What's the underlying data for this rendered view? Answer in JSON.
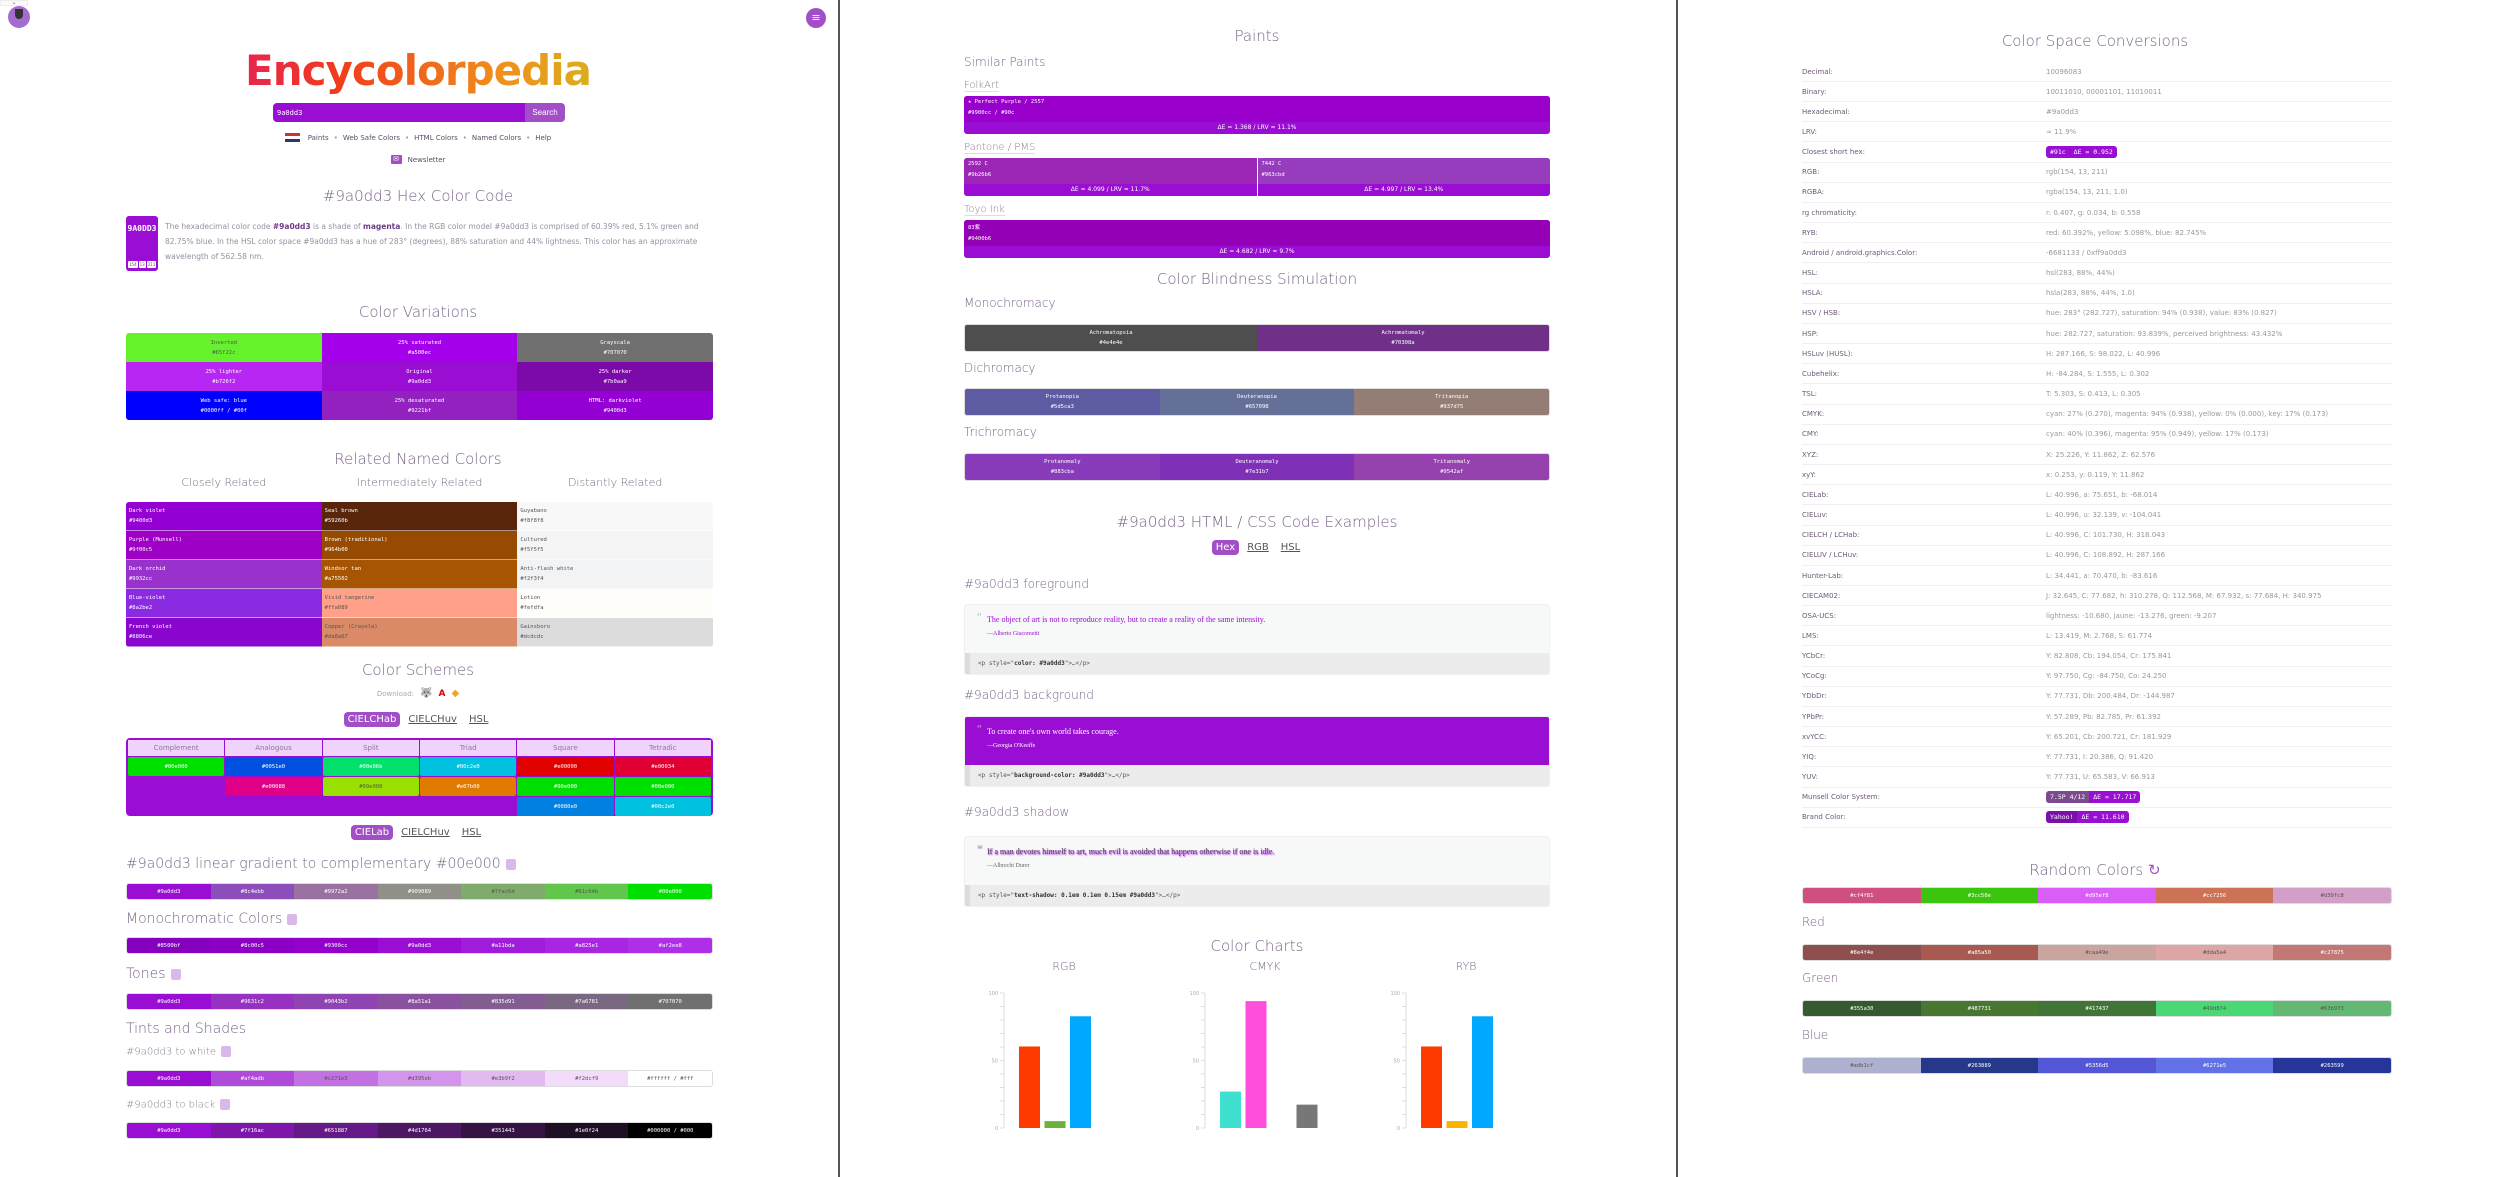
{
  "header": {
    "logo": "Encycolorpedia",
    "search_value": "9a0dd3",
    "search_button": "Search",
    "nav": [
      "Paints",
      "Web Safe Colors",
      "HTML Colors",
      "Named Colors",
      "Help"
    ],
    "newsletter": "Newsletter"
  },
  "hex_section": {
    "title": "#9a0dd3 Hex Color Code",
    "swatch_label": "9A0DD3",
    "rgb": [
      "154",
      "13",
      "211"
    ],
    "description": [
      {
        "text": "The hexadecimal color code ",
        "bold": false
      },
      {
        "text": "#9a0dd3",
        "bold": true
      },
      {
        "text": " is a shade of ",
        "bold": false
      },
      {
        "text": "magenta",
        "bold": true
      },
      {
        "text": ". In the RGB color model #9a0dd3 is comprised of 60.39% red, 5.1% green and 82.75% blue. In the HSL color space #9a0dd3 has a hue of 283° (degrees), 88% saturation and 44% lightness. This color has an approximate wavelength of 562.58 nm.",
        "bold": false
      }
    ]
  },
  "variations": {
    "title": "Color Variations",
    "items": [
      {
        "label": "Inverted",
        "hex": "#65f22c"
      },
      {
        "label": "25% saturated",
        "hex": "#a500ec"
      },
      {
        "label": "Grayscale",
        "hex": "#707070"
      },
      {
        "label": "25% lighter",
        "hex": "#b726f2"
      },
      {
        "label": "Original",
        "hex": "#9a0dd3"
      },
      {
        "label": "25% darker",
        "hex": "#7b0aa9"
      },
      {
        "label": "Web safe: blue",
        "hex": "#0000ff / #00f"
      },
      {
        "label": "25% desaturated",
        "hex": "#9221bf"
      },
      {
        "label": "HTML: darkviolet",
        "hex": "#9400d3"
      }
    ]
  },
  "related": {
    "title": "Related Named Colors",
    "columns": [
      {
        "heading": "Closely Related",
        "items": [
          {
            "name": "Dark violet",
            "hex": "#9400d3"
          },
          {
            "name": "Purple (Munsell)",
            "hex": "#9f00c5"
          },
          {
            "name": "Dark orchid",
            "hex": "#9932cc"
          },
          {
            "name": "Blue-violet",
            "hex": "#8a2be2"
          },
          {
            "name": "French violet",
            "hex": "#8806ce"
          }
        ]
      },
      {
        "heading": "Intermediately Related",
        "items": [
          {
            "name": "Seal brown",
            "hex": "#59260b"
          },
          {
            "name": "Brown (traditional)",
            "hex": "#964b00"
          },
          {
            "name": "Windsor tan",
            "hex": "#a75502"
          },
          {
            "name": "Vivid tangerine",
            "hex": "#ffa089"
          },
          {
            "name": "Copper (Crayola)",
            "hex": "#da8a67"
          }
        ]
      },
      {
        "heading": "Distantly Related",
        "items": [
          {
            "name": "Guyabano",
            "hex": "#f8f8f8"
          },
          {
            "name": "Cultured",
            "hex": "#f5f5f5"
          },
          {
            "name": "Anti-flash white",
            "hex": "#f2f3f4"
          },
          {
            "name": "Lotion",
            "hex": "#fefdfa"
          },
          {
            "name": "Gainsboro",
            "hex": "#dcdcdc"
          }
        ]
      }
    ]
  },
  "schemes": {
    "title": "Color Schemes",
    "download_label": "Download:",
    "download_icons": [
      "gimp-icon",
      "adobe-icon",
      "sketch-icon"
    ],
    "tabs": [
      "CIELCHab",
      "CIELCHuv",
      "HSL"
    ],
    "active_tab": "CIELCHab",
    "columns": [
      {
        "heading": "Complement",
        "colors": [
          "#00e000"
        ]
      },
      {
        "heading": "Analogous",
        "colors": [
          "#0051e0",
          "#e00088"
        ]
      },
      {
        "heading": "Split",
        "colors": [
          "#00e06b",
          "#99e000"
        ]
      },
      {
        "heading": "Triad",
        "colors": [
          "#00c2e0",
          "#e07b00"
        ]
      },
      {
        "heading": "Square",
        "colors": [
          "#e00000",
          "#00e000",
          "#0080e0"
        ]
      },
      {
        "heading": "Tetradic",
        "colors": [
          "#e00034",
          "#00e000",
          "#00c2e0"
        ]
      }
    ],
    "gradient_tabs": [
      "CIELab",
      "CIELCHuv",
      "HSL"
    ],
    "gradient_active_tab": "CIELab"
  },
  "gradients": [
    {
      "title": "#9a0dd3 linear gradient to complementary #00e000",
      "colors": [
        "#9a0dd3",
        "#8c4ebb",
        "#9972a2",
        "#909089",
        "#7fac6d",
        "#61c64b",
        "#00e000"
      ]
    },
    {
      "title": "Monochromatic Colors",
      "colors": [
        "#8500bf",
        "#8c00c5",
        "#9300cc",
        "#9a0dd3",
        "#a11bda",
        "#a825e1",
        "#af2ee8"
      ]
    },
    {
      "title": "Tones",
      "colors": [
        "#9a0dd3",
        "#9631c2",
        "#9043b2",
        "#8a51a1",
        "#835d91",
        "#7a6781",
        "#707070"
      ]
    }
  ],
  "tints_shades": {
    "title": "Tints and Shades",
    "to_white": {
      "title": "#9a0dd3 to white",
      "colors": [
        "#9a0dd3",
        "#af4adb",
        "#c271e3",
        "#d395eb",
        "#e3b9f2",
        "#f2dcf9",
        "#ffffff / #fff"
      ]
    },
    "to_black": {
      "title": "#9a0dd3 to black",
      "colors": [
        "#9a0dd3",
        "#7f16ac",
        "#651887",
        "#4d1764",
        "#351443",
        "#1e0f24",
        "#000000 / #000"
      ]
    }
  },
  "paints": {
    "title": "Paints",
    "subtitle": "Similar Paints",
    "brands": [
      {
        "name": "FolkArt",
        "paints": [
          {
            "name": "★ Perfect Purple / 2557",
            "hex": "#9900cc / #90c",
            "delta": "ΔE = 1.368 / LRV ≈ 11.1%"
          }
        ]
      },
      {
        "name": "Pantone / PMS",
        "paints": [
          {
            "name": "2592 C",
            "hex": "#9b26b6",
            "delta": "ΔE = 4.099 / LRV ≈ 11.7%"
          },
          {
            "name": "7442 C",
            "hex": "#963cbd",
            "delta": "ΔE = 4.997 / LRV ≈ 13.4%"
          }
        ]
      },
      {
        "name": "Toyo Ink",
        "paints": [
          {
            "name": "83紫",
            "hex": "#9400b6",
            "delta": "ΔE = 4.682 / LRV ≈ 9.7%"
          }
        ]
      }
    ]
  },
  "blindness": {
    "title": "Color Blindness Simulation",
    "groups": [
      {
        "name": "Monochromacy",
        "items": [
          {
            "label": "Achromatopsia",
            "hex": "#4e4e4e"
          },
          {
            "label": "Achromatomaly",
            "hex": "#70308a"
          }
        ]
      },
      {
        "name": "Dichromacy",
        "items": [
          {
            "label": "Protanopia",
            "hex": "#5d5ca3"
          },
          {
            "label": "Deuteranopia",
            "hex": "#657098"
          },
          {
            "label": "Tritanopia",
            "hex": "#937d75"
          }
        ]
      },
      {
        "name": "Trichromacy",
        "items": [
          {
            "label": "Protanomaly",
            "hex": "#883cba"
          },
          {
            "label": "Deuteranomaly",
            "hex": "#7e31b7"
          },
          {
            "label": "Tritanomaly",
            "hex": "#9542af"
          }
        ]
      }
    ]
  },
  "code_examples": {
    "title": "#9a0dd3 HTML / CSS Code Examples",
    "tabs": [
      "Hex",
      "RGB",
      "HSL"
    ],
    "active_tab": "Hex",
    "examples": [
      {
        "title": "#9a0dd3 foreground",
        "quote": "The object of art is not to reproduce reality, but to create a reality of the same intensity.",
        "author": "—Alberto Giacometti",
        "code_pre": "<p style=\"",
        "code_bold": "color: #9a0dd3",
        "code_post": "\">…</p>"
      },
      {
        "title": "#9a0dd3 background",
        "quote": "To create one's own world takes courage.",
        "author": "—Georgia O'Keeffe",
        "code_pre": "<p style=\"",
        "code_bold": "background-color: #9a0dd3",
        "code_post": "\">…</p>"
      },
      {
        "title": "#9a0dd3 shadow",
        "quote": "If a man devotes himself to art, much evil is avoided that happens otherwise if one is idle.",
        "author": "—Albrecht Durer",
        "code_pre": "<p style=\"",
        "code_bold": "text-shadow: 0.1em 0.1em 0.15em #9a0dd3",
        "code_post": "\">…</p>"
      }
    ]
  },
  "charts_title": "Color Charts",
  "chart_data": [
    {
      "type": "bar",
      "title": "RGB",
      "categories": [
        "R",
        "G",
        "B"
      ],
      "values": [
        60.39,
        5.1,
        82.75
      ],
      "colors": [
        "#ff3a00",
        "#6ab23a",
        "#00a8ff"
      ],
      "ylim": [
        0,
        100
      ],
      "yticks": [
        "0",
        "50",
        "100"
      ],
      "grid": false
    },
    {
      "type": "bar",
      "title": "CMYK",
      "categories": [
        "C",
        "M",
        "Y",
        "K"
      ],
      "values": [
        27,
        94,
        0,
        17.3
      ],
      "colors": [
        "#40e0d0",
        "#ff4edb",
        "#ffe600",
        "#777777"
      ],
      "ylim": [
        0,
        100
      ],
      "yticks": [
        "0",
        "50",
        "100"
      ],
      "grid": false
    },
    {
      "type": "bar",
      "title": "RYB",
      "categories": [
        "R",
        "Y",
        "B"
      ],
      "values": [
        60.392,
        5.098,
        82.745
      ],
      "colors": [
        "#ff3a00",
        "#f7b500",
        "#00a8ff"
      ],
      "ylim": [
        0,
        100
      ],
      "yticks": [
        "0",
        "50",
        "100"
      ],
      "grid": false
    }
  ],
  "conversions": {
    "title": "Color Space Conversions",
    "rows": [
      {
        "k": "Decimal:",
        "v": "10096083"
      },
      {
        "k": "Binary:",
        "v": "10011010, 00001101, 11010011"
      },
      {
        "k": "Hexadecimal:",
        "v": "#9a0dd3"
      },
      {
        "k": "LRV:",
        "v": "≈ 11.9%"
      },
      {
        "k": "Closest short hex:",
        "badge": [
          "#91c",
          "ΔE = 0.952"
        ]
      },
      {
        "k": "RGB:",
        "v": "rgb(154, 13, 211)"
      },
      {
        "k": "RGBA:",
        "v": "rgba(154, 13, 211, 1.0)"
      },
      {
        "k": "rg chromaticity:",
        "v": "r: 0.407, g: 0.034, b: 0.558"
      },
      {
        "k": "RYB:",
        "v": "red: 60.392%, yellow: 5.098%, blue: 82.745%"
      },
      {
        "k": "Android / android.graphics.Color:",
        "v": "-6681133 / 0xff9a0dd3"
      },
      {
        "k": "HSL:",
        "v": "hsl(283, 88%, 44%)"
      },
      {
        "k": "HSLA:",
        "v": "hsla(283, 88%, 44%, 1.0)"
      },
      {
        "k": "HSV / HSB:",
        "v": "hue: 283° (282.727), saturation: 94% (0.938), value: 83% (0.827)"
      },
      {
        "k": "HSP:",
        "v": "hue: 282.727, saturation: 93.839%, perceived brightness: 43.432%"
      },
      {
        "k": "HSLuv (HUSL):",
        "v": "H: 287.166, S: 98.022, L: 40.996"
      },
      {
        "k": "Cubehelix:",
        "v": "H: -84.284, S: 1.555, L: 0.302"
      },
      {
        "k": "TSL:",
        "v": "T: 5.303, S: 0.413, L: 0.305"
      },
      {
        "k": "CMYK:",
        "v": "cyan: 27% (0.270), magenta: 94% (0.938), yellow: 0% (0.000), key: 17% (0.173)"
      },
      {
        "k": "CMY:",
        "v": "cyan: 40% (0.396), magenta: 95% (0.949), yellow: 17% (0.173)"
      },
      {
        "k": "XYZ:",
        "v": "X: 25.226, Y: 11.862, Z: 62.576"
      },
      {
        "k": "xyY:",
        "v": "x: 0.253, y: 0.119, Y: 11.862"
      },
      {
        "k": "CIELab:",
        "v": "L: 40.996, a: 75.651, b: -68.014"
      },
      {
        "k": "CIELuv:",
        "v": "L: 40.996, u: 32.139, v: -104.041"
      },
      {
        "k": "CIELCH / LCHab:",
        "v": "L: 40.996, C: 101.730, H: 318.043"
      },
      {
        "k": "CIELUV / LCHuv:",
        "v": "L: 40.996, C: 108.892, H: 287.166"
      },
      {
        "k": "Hunter-Lab:",
        "v": "L: 34.441, a: 70.470, b: -83.616"
      },
      {
        "k": "CIECAM02:",
        "v": "J: 32.645, C: 77.682, h: 310.278, Q: 112.568, M: 67.932, s: 77.684, H: 340.975"
      },
      {
        "k": "OSA-UCS:",
        "v": "lightness: -10.680, jaune: -13.276, green: -9.207"
      },
      {
        "k": "LMS:",
        "v": "L: 13.419, M: 2.768, S: 61.774"
      },
      {
        "k": "YCbCr:",
        "v": "Y: 82.808, Cb: 194.054, Cr: 175.841"
      },
      {
        "k": "YCoCg:",
        "v": "Y: 97.750, Cg: -84.750, Co: 24.250"
      },
      {
        "k": "YDbDr:",
        "v": "Y: 77.731, Db: 200.484, Dr: -144.987"
      },
      {
        "k": "YPbPr:",
        "v": "Y: 57.289, Pb: 82.785, Pr: 61.392"
      },
      {
        "k": "xvYCC:",
        "v": "Y: 65.201, Cb: 200.721, Cr: 181.929"
      },
      {
        "k": "YIQ:",
        "v": "Y: 77.731, I: 20.386, Q: 91.420"
      },
      {
        "k": "YUV:",
        "v": "Y: 77.731, U: 65.583, V: 66.913"
      },
      {
        "k": "Munsell Color System:",
        "badge": [
          "7.5P 4/12",
          "ΔE = 17.717"
        ]
      },
      {
        "k": "Brand Color:",
        "badge": [
          "Yahoo!",
          "ΔE = 11.610"
        ]
      }
    ]
  },
  "random": {
    "title": "Random Colors",
    "groups": [
      {
        "name": "",
        "colors": [
          "#cf4f81",
          "#3cc50e",
          "#d95ef8",
          "#cc7256",
          "#d39fc8"
        ]
      },
      {
        "name": "Red",
        "colors": [
          "#8e4f4e",
          "#a85a50",
          "#caa49e",
          "#dda5a4",
          "#c27875"
        ]
      },
      {
        "name": "Green",
        "colors": [
          "#355a30",
          "#487731",
          "#417437",
          "#49d874",
          "#63b973"
        ]
      },
      {
        "name": "Blue",
        "colors": [
          "#adb1cf",
          "#263889",
          "#5356d5",
          "#6271e5",
          "#263599"
        ]
      }
    ]
  },
  "colors": {
    "accent": "#9a0dd3",
    "button": "#a14ec7"
  }
}
